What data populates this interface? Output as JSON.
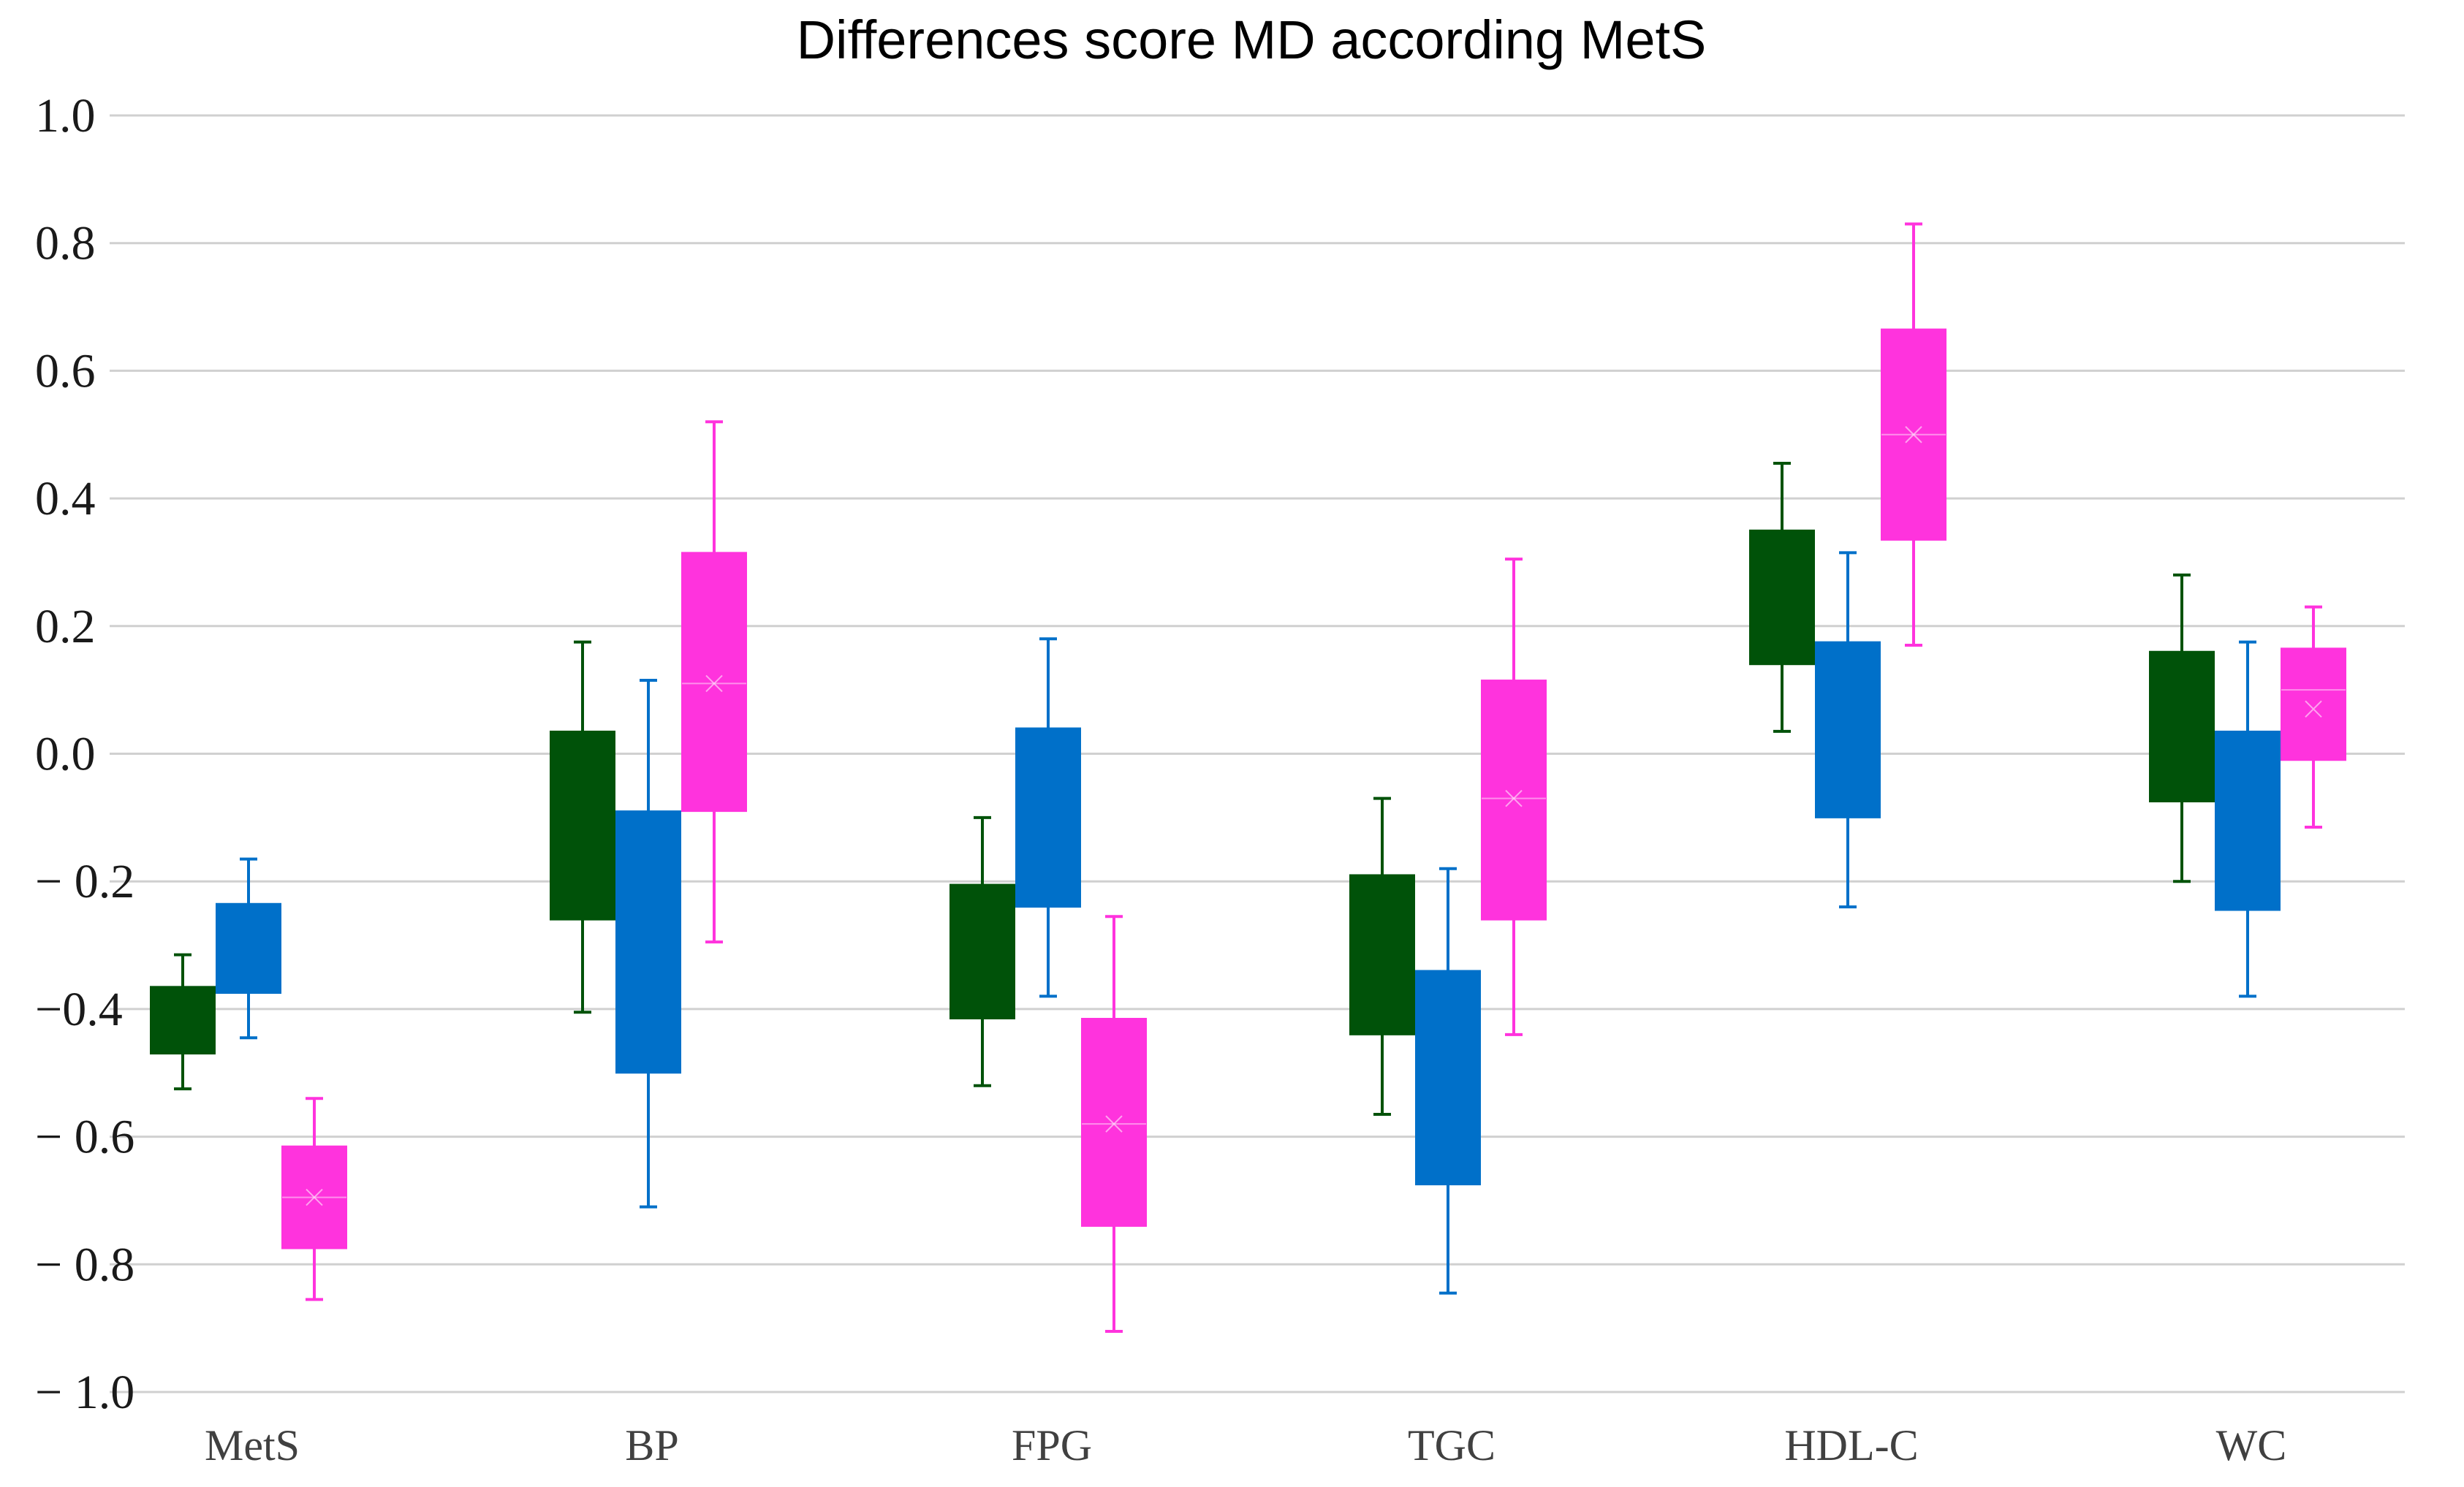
{
  "chart_data": {
    "type": "box",
    "title": "Differences score MD according MetS",
    "xlabel": "",
    "ylabel": "",
    "ylim": [
      -1.0,
      1.0
    ],
    "yticks": [
      1.0,
      0.8,
      0.6,
      0.4,
      0.2,
      0.0,
      -0.2,
      -0.4,
      -0.6,
      -0.8,
      -1.0
    ],
    "ytick_labels": [
      "1.0",
      "0.8",
      "0.6",
      "0.4",
      "0.2",
      "0.0",
      "− 0.2",
      "−0.4",
      "− 0.6",
      "− 0.8",
      "− 1.0"
    ],
    "grid": true,
    "legend": "none",
    "categories": [
      "MetS",
      "BP",
      "FPG",
      "TGC",
      "HDL-C",
      "WC"
    ],
    "series": [
      {
        "color": "#005209",
        "values": [
          {
            "whisker_low": -0.525,
            "q1": -0.47,
            "q3": -0.365,
            "whisker_high": -0.315
          },
          {
            "whisker_low": -0.405,
            "q1": -0.26,
            "q3": 0.035,
            "whisker_high": 0.175
          },
          {
            "whisker_low": -0.52,
            "q1": -0.415,
            "q3": -0.205,
            "whisker_high": -0.1
          },
          {
            "whisker_low": -0.565,
            "q1": -0.44,
            "q3": -0.19,
            "whisker_high": -0.07
          },
          {
            "whisker_low": 0.035,
            "q1": 0.14,
            "q3": 0.35,
            "whisker_high": 0.455
          },
          {
            "whisker_low": -0.2,
            "q1": -0.075,
            "q3": 0.16,
            "whisker_high": 0.28
          }
        ]
      },
      {
        "color": "#0070C9",
        "values": [
          {
            "whisker_low": -0.445,
            "q1": -0.375,
            "q3": -0.235,
            "whisker_high": -0.165
          },
          {
            "whisker_low": -0.71,
            "q1": -0.5,
            "q3": -0.09,
            "whisker_high": 0.115
          },
          {
            "whisker_low": -0.38,
            "q1": -0.24,
            "q3": 0.04,
            "whisker_high": 0.18
          },
          {
            "whisker_low": -0.845,
            "q1": -0.675,
            "q3": -0.34,
            "whisker_high": -0.18
          },
          {
            "whisker_low": -0.24,
            "q1": -0.1,
            "q3": 0.175,
            "whisker_high": 0.315
          },
          {
            "whisker_low": -0.38,
            "q1": -0.245,
            "q3": 0.035,
            "whisker_high": 0.175
          }
        ]
      },
      {
        "color": "#FF33DD",
        "values": [
          {
            "whisker_low": -0.855,
            "q1": -0.775,
            "q3": -0.615,
            "whisker_high": -0.54,
            "mean": -0.695,
            "median": -0.695
          },
          {
            "whisker_low": -0.295,
            "q1": -0.09,
            "q3": 0.315,
            "whisker_high": 0.52,
            "mean": 0.11,
            "median": 0.11
          },
          {
            "whisker_low": -0.905,
            "q1": -0.74,
            "q3": -0.415,
            "whisker_high": -0.255,
            "mean": -0.58,
            "median": -0.58
          },
          {
            "whisker_low": -0.44,
            "q1": -0.26,
            "q3": 0.115,
            "whisker_high": 0.305,
            "mean": -0.07,
            "median": -0.07
          },
          {
            "whisker_low": 0.17,
            "q1": 0.335,
            "q3": 0.665,
            "whisker_high": 0.83,
            "mean": 0.5,
            "median": 0.5
          },
          {
            "whisker_low": -0.115,
            "q1": -0.01,
            "q3": 0.165,
            "whisker_high": 0.23,
            "mean": 0.07,
            "median": 0.1
          }
        ]
      }
    ]
  }
}
